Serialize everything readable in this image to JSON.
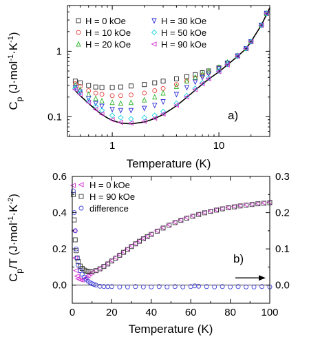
{
  "chart_data": [
    {
      "type": "scatter",
      "panel_label": "a)",
      "xlabel": "Temperature (K)",
      "ylabel": {
        "main": "C",
        "sub": "p",
        "rest": " (J·mol",
        "sup1": "-1",
        "mid": "·K",
        "sup2": "-1",
        "close": ")"
      },
      "x_scale": "log",
      "y_scale": "log",
      "xlim": [
        0.38,
        30
      ],
      "ylim": [
        0.05,
        5
      ],
      "xtick_labels": [
        {
          "v": 1,
          "t": "1"
        },
        {
          "v": 10,
          "t": "10"
        }
      ],
      "ytick_labels": [
        {
          "v": 0.1,
          "t": "0.1"
        },
        {
          "v": 1,
          "t": "1"
        }
      ],
      "legend_placement": "top-left",
      "series": [
        {
          "name": "H =   0 kOe",
          "color": "#222222",
          "marker": "square",
          "x": [
            0.45,
            0.5,
            0.6,
            0.7,
            0.8,
            1,
            1.2,
            1.5,
            2,
            2.5,
            3,
            4,
            5,
            6,
            7,
            8,
            10,
            12,
            15,
            18,
            20,
            25,
            28
          ],
          "y": [
            0.35,
            0.33,
            0.3,
            0.285,
            0.28,
            0.28,
            0.285,
            0.295,
            0.31,
            0.33,
            0.35,
            0.38,
            0.41,
            0.44,
            0.47,
            0.5,
            0.56,
            0.66,
            0.85,
            1.1,
            1.4,
            2.5,
            3.8
          ]
        },
        {
          "name": "H = 10 kOe",
          "color": "#e8413c",
          "marker": "circle",
          "x": [
            0.45,
            0.5,
            0.6,
            0.7,
            0.8,
            1,
            1.2,
            1.5,
            2,
            2.5,
            3,
            4,
            5,
            6,
            7,
            8,
            10,
            12,
            15,
            18,
            20,
            25,
            28
          ],
          "y": [
            0.32,
            0.29,
            0.25,
            0.23,
            0.22,
            0.21,
            0.21,
            0.215,
            0.23,
            0.25,
            0.27,
            0.31,
            0.35,
            0.39,
            0.43,
            0.47,
            0.55,
            0.66,
            0.85,
            1.1,
            1.4,
            2.5,
            3.8
          ]
        },
        {
          "name": "H = 20 kOe",
          "color": "#2db52d",
          "marker": "triangle-up",
          "x": [
            0.45,
            0.5,
            0.6,
            0.7,
            0.8,
            1,
            1.2,
            1.5,
            2,
            2.5,
            3,
            4,
            5,
            6,
            7,
            8,
            10,
            12,
            15,
            18,
            20,
            25,
            28
          ],
          "y": [
            0.3,
            0.26,
            0.22,
            0.19,
            0.175,
            0.165,
            0.16,
            0.165,
            0.18,
            0.2,
            0.23,
            0.29,
            0.35,
            0.4,
            0.45,
            0.5,
            0.57,
            0.68,
            0.86,
            1.1,
            1.4,
            2.5,
            3.8
          ]
        },
        {
          "name": "H = 30 kOe",
          "color": "#2a2ad6",
          "marker": "triangle-down",
          "x": [
            0.45,
            0.5,
            0.6,
            0.7,
            0.8,
            1,
            1.2,
            1.5,
            2,
            2.5,
            3,
            4,
            5,
            6,
            7,
            8,
            10,
            12,
            15,
            18,
            20,
            25,
            28
          ],
          "y": [
            0.28,
            0.24,
            0.19,
            0.16,
            0.145,
            0.13,
            0.125,
            0.125,
            0.135,
            0.15,
            0.17,
            0.22,
            0.28,
            0.34,
            0.4,
            0.45,
            0.54,
            0.66,
            0.85,
            1.1,
            1.4,
            2.5,
            3.8
          ]
        },
        {
          "name": "H = 50 kOe",
          "color": "#18d2e0",
          "marker": "diamond",
          "x": [
            0.45,
            0.5,
            0.6,
            0.7,
            0.8,
            1,
            1.2,
            1.5,
            2,
            2.5,
            3,
            4,
            5,
            6,
            7,
            8,
            10,
            12,
            15,
            18,
            20,
            25,
            28
          ],
          "y": [
            0.27,
            0.23,
            0.175,
            0.145,
            0.125,
            0.105,
            0.097,
            0.093,
            0.097,
            0.105,
            0.12,
            0.16,
            0.21,
            0.27,
            0.33,
            0.39,
            0.5,
            0.63,
            0.84,
            1.1,
            1.4,
            2.5,
            3.8
          ]
        },
        {
          "name": "H = 90 kOe",
          "color": "#d22ed2",
          "marker": "triangle-left",
          "x": [
            0.45,
            0.5,
            0.6,
            0.7,
            0.8,
            1,
            1.2,
            1.5,
            2,
            2.5,
            3,
            4,
            5,
            6,
            7,
            8,
            10,
            12,
            15,
            18,
            20,
            25,
            28
          ],
          "y": [
            0.26,
            0.22,
            0.165,
            0.13,
            0.11,
            0.09,
            0.082,
            0.08,
            0.085,
            0.095,
            0.11,
            0.15,
            0.2,
            0.26,
            0.32,
            0.38,
            0.49,
            0.62,
            0.84,
            1.1,
            1.4,
            2.5,
            3.8
          ]
        }
      ],
      "fit_curve": {
        "color": "#000000",
        "x": [
          0.45,
          0.5,
          0.6,
          0.7,
          0.8,
          0.9,
          1,
          1.2,
          1.5,
          2,
          2.5,
          3,
          4,
          5,
          6,
          7,
          8,
          10,
          12,
          15,
          18,
          20,
          25,
          30
        ],
        "y": [
          0.25,
          0.21,
          0.16,
          0.128,
          0.108,
          0.096,
          0.088,
          0.08,
          0.078,
          0.083,
          0.094,
          0.108,
          0.147,
          0.198,
          0.255,
          0.315,
          0.375,
          0.485,
          0.62,
          0.84,
          1.1,
          1.4,
          2.5,
          4.6
        ]
      }
    },
    {
      "type": "scatter",
      "panel_label": "b)",
      "xlabel": "Temperature (K)",
      "ylabel": {
        "main": "C",
        "sub": "p",
        "rest": "/T (J·mol",
        "sup1": "-1",
        "mid": "·K",
        "sup2": "-2",
        "close": ")"
      },
      "xlim": [
        0,
        100
      ],
      "ylim": [
        -0.1,
        0.6
      ],
      "y2lim": [
        -0.05,
        0.3
      ],
      "xtick_labels": [
        {
          "v": 0,
          "t": "0"
        },
        {
          "v": 20,
          "t": "20"
        },
        {
          "v": 40,
          "t": "40"
        },
        {
          "v": 60,
          "t": "60"
        },
        {
          "v": 80,
          "t": "80"
        },
        {
          "v": 100,
          "t": "100"
        }
      ],
      "ytick_labels": [
        {
          "v": 0,
          "t": "0.0"
        },
        {
          "v": 0.2,
          "t": "0.2"
        },
        {
          "v": 0.4,
          "t": "0.4"
        },
        {
          "v": 0.6,
          "t": "0.6"
        }
      ],
      "y2tick_labels": [
        {
          "v": 0,
          "t": "0.0"
        },
        {
          "v": 0.1,
          "t": "0.1"
        },
        {
          "v": 0.2,
          "t": "0.2"
        },
        {
          "v": 0.3,
          "t": "0.3"
        }
      ],
      "legend_placement": "top-left",
      "series": [
        {
          "name": "H =   0 kOe",
          "color": "#d22ed2",
          "marker": "triangle-left",
          "axis": "left",
          "x": [
            0.5,
            1,
            1.5,
            2,
            2.5,
            3,
            4,
            5,
            6,
            7,
            8,
            9,
            10,
            12,
            14,
            16,
            18,
            20,
            22,
            24,
            26,
            28,
            30,
            32,
            34,
            36,
            38,
            40,
            43,
            46,
            49,
            52,
            55,
            58,
            61,
            64,
            67,
            70,
            73,
            76,
            79,
            82,
            85,
            88,
            91,
            94,
            97,
            100
          ],
          "y": [
            0.55,
            0.3,
            0.15,
            0.08,
            0.05,
            0.035,
            0.03,
            0.028,
            0.032,
            0.04,
            0.052,
            0.062,
            0.07,
            0.08,
            0.092,
            0.106,
            0.12,
            0.136,
            0.152,
            0.168,
            0.184,
            0.2,
            0.216,
            0.23,
            0.244,
            0.258,
            0.27,
            0.282,
            0.3,
            0.317,
            0.333,
            0.347,
            0.36,
            0.372,
            0.382,
            0.392,
            0.401,
            0.409,
            0.416,
            0.423,
            0.429,
            0.434,
            0.439,
            0.443,
            0.447,
            0.451,
            0.454,
            0.457
          ]
        },
        {
          "name": "H = 90 kOe",
          "color": "#333333",
          "marker": "square",
          "axis": "left",
          "x": [
            0.5,
            1,
            1.5,
            2,
            2.5,
            3,
            4,
            5,
            6,
            7,
            8,
            9,
            10,
            12,
            14,
            16,
            18,
            20,
            22,
            24,
            26,
            28,
            30,
            32,
            34,
            36,
            38,
            40,
            43,
            46,
            49,
            52,
            55,
            58,
            61,
            64,
            67,
            70,
            73,
            76,
            79,
            82,
            85,
            88,
            91,
            94,
            97,
            100
          ],
          "y": [
            0.5,
            0.36,
            0.25,
            0.19,
            0.15,
            0.13,
            0.105,
            0.092,
            0.083,
            0.078,
            0.075,
            0.074,
            0.075,
            0.08,
            0.09,
            0.103,
            0.117,
            0.133,
            0.149,
            0.165,
            0.181,
            0.197,
            0.213,
            0.228,
            0.242,
            0.256,
            0.268,
            0.28,
            0.298,
            0.315,
            0.331,
            0.345,
            0.358,
            0.37,
            0.38,
            0.39,
            0.399,
            0.407,
            0.414,
            0.421,
            0.427,
            0.432,
            0.437,
            0.441,
            0.445,
            0.449,
            0.452,
            0.455
          ]
        },
        {
          "name": "difference",
          "color": "#3a3ad8",
          "marker": "circle",
          "axis": "right",
          "x": [
            0.5,
            1,
            1.5,
            2,
            2.5,
            3,
            4,
            5,
            6,
            7,
            8,
            9,
            10,
            11,
            12,
            14,
            16,
            18,
            20,
            24,
            28,
            32,
            36,
            40,
            44,
            48,
            52,
            56,
            60,
            62,
            64,
            68,
            72,
            76,
            80,
            84,
            88,
            92,
            96,
            100
          ],
          "y": [
            0.26,
            0.2,
            0.15,
            0.1,
            0.075,
            0.055,
            0.04,
            0.03,
            0.022,
            0.016,
            0.011,
            0.007,
            0.004,
            0.002,
            0.0,
            -0.003,
            -0.004,
            -0.004,
            -0.004,
            -0.005,
            -0.005,
            -0.004,
            -0.005,
            -0.005,
            -0.004,
            -0.005,
            -0.004,
            -0.005,
            -0.004,
            -0.002,
            -0.003,
            -0.004,
            -0.005,
            -0.004,
            -0.005,
            -0.004,
            -0.005,
            -0.005,
            -0.004,
            -0.005
          ]
        }
      ],
      "zero_line": true,
      "arrow_points_to": "right axis"
    }
  ]
}
